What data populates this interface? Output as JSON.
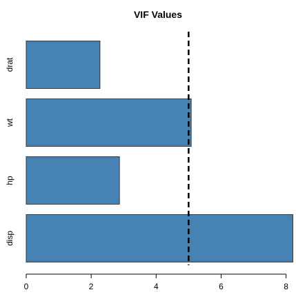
{
  "chart_data": {
    "type": "bar",
    "orientation": "horizontal",
    "title": "VIF Values",
    "xlabel": "",
    "ylabel": "",
    "categories": [
      "drat",
      "wt",
      "hp",
      "disp"
    ],
    "values": [
      2.27,
      5.08,
      2.87,
      8.21
    ],
    "xlim": [
      0,
      8.2
    ],
    "x_ticks": [
      0,
      2,
      4,
      6,
      8
    ],
    "reference_line": {
      "value": 5,
      "style": "dashed",
      "color": "#000000"
    },
    "bar_color": "#4682B4",
    "bar_border_color": "#333333",
    "grid": false,
    "legend": "none"
  }
}
